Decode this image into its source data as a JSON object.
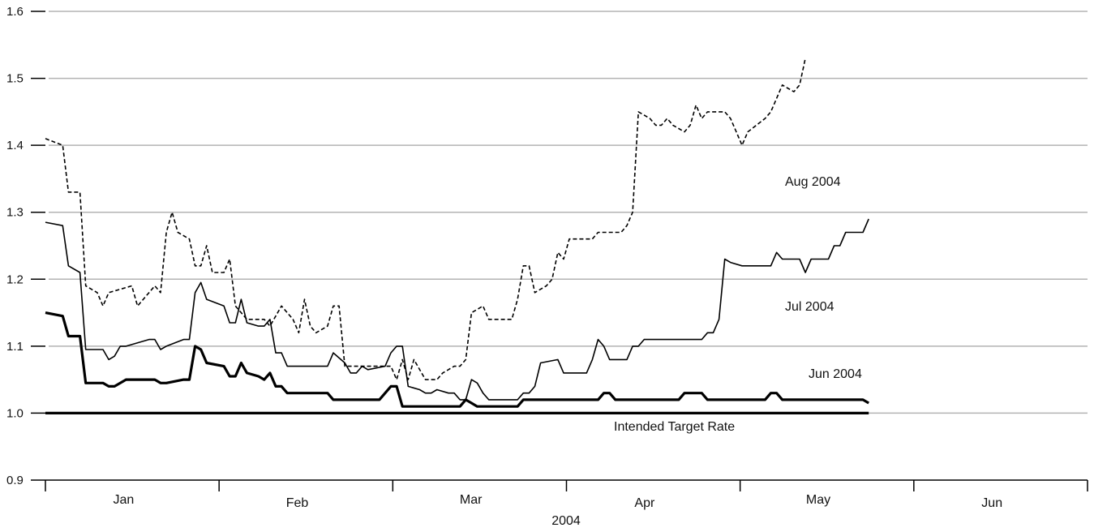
{
  "chart_data": {
    "type": "line",
    "title": "",
    "xlabel": "2004",
    "ylabel": "",
    "ylim": [
      0.9,
      1.6
    ],
    "yticks": [
      "0.9",
      "1.0",
      "1.1",
      "1.2",
      "1.3",
      "1.4",
      "1.5",
      "1.6"
    ],
    "grid": "horizontal",
    "x_months": [
      "Jan",
      "Feb",
      "Mar",
      "Apr",
      "May",
      "Jun"
    ],
    "x_range_days": [
      0,
      181
    ],
    "annotations": [
      "Aug 2004",
      "Jul 2004",
      "Jun 2004",
      "Intended Target Rate"
    ],
    "series": [
      {
        "name": "Aug 2004",
        "style": "dashed",
        "color": "#000000",
        "points": [
          [
            0,
            1.41
          ],
          [
            3,
            1.4
          ],
          [
            4,
            1.33
          ],
          [
            6,
            1.33
          ],
          [
            7,
            1.19
          ],
          [
            9,
            1.18
          ],
          [
            10,
            1.16
          ],
          [
            11,
            1.18
          ],
          [
            13,
            1.185
          ],
          [
            15,
            1.19
          ],
          [
            16,
            1.16
          ],
          [
            18,
            1.18
          ],
          [
            19,
            1.19
          ],
          [
            20,
            1.18
          ],
          [
            21,
            1.27
          ],
          [
            22,
            1.3
          ],
          [
            23,
            1.27
          ],
          [
            25,
            1.26
          ],
          [
            26,
            1.22
          ],
          [
            27,
            1.22
          ],
          [
            28,
            1.25
          ],
          [
            29,
            1.21
          ],
          [
            31,
            1.21
          ],
          [
            32,
            1.23
          ],
          [
            33,
            1.16
          ],
          [
            35,
            1.14
          ],
          [
            38,
            1.14
          ],
          [
            39,
            1.13
          ],
          [
            41,
            1.16
          ],
          [
            43,
            1.14
          ],
          [
            44,
            1.12
          ],
          [
            45,
            1.17
          ],
          [
            46,
            1.13
          ],
          [
            47,
            1.12
          ],
          [
            49,
            1.13
          ],
          [
            50,
            1.16
          ],
          [
            51,
            1.16
          ],
          [
            52,
            1.07
          ],
          [
            58,
            1.07
          ],
          [
            60,
            1.07
          ],
          [
            61,
            1.05
          ],
          [
            62,
            1.08
          ],
          [
            63,
            1.05
          ],
          [
            64,
            1.08
          ],
          [
            66,
            1.05
          ],
          [
            68,
            1.05
          ],
          [
            69,
            1.06
          ],
          [
            71,
            1.07
          ],
          [
            72,
            1.07
          ],
          [
            73,
            1.08
          ],
          [
            74,
            1.15
          ],
          [
            76,
            1.16
          ],
          [
            77,
            1.14
          ],
          [
            81,
            1.14
          ],
          [
            82,
            1.17
          ],
          [
            83,
            1.22
          ],
          [
            84,
            1.22
          ],
          [
            85,
            1.18
          ],
          [
            87,
            1.19
          ],
          [
            88,
            1.2
          ],
          [
            89,
            1.24
          ],
          [
            90,
            1.23
          ],
          [
            91,
            1.26
          ],
          [
            95,
            1.26
          ],
          [
            96,
            1.27
          ],
          [
            98,
            1.27
          ],
          [
            100,
            1.27
          ],
          [
            101,
            1.28
          ],
          [
            102,
            1.3
          ],
          [
            103,
            1.45
          ],
          [
            105,
            1.44
          ],
          [
            106,
            1.43
          ],
          [
            107,
            1.43
          ],
          [
            108,
            1.44
          ],
          [
            109,
            1.43
          ],
          [
            110,
            1.425
          ],
          [
            111,
            1.42
          ],
          [
            112,
            1.43
          ],
          [
            113,
            1.46
          ],
          [
            114,
            1.44
          ],
          [
            115,
            1.45
          ],
          [
            118,
            1.45
          ],
          [
            119,
            1.44
          ],
          [
            121,
            1.4
          ],
          [
            122,
            1.42
          ],
          [
            125,
            1.44
          ],
          [
            126,
            1.45
          ],
          [
            128,
            1.49
          ],
          [
            129,
            1.485
          ],
          [
            130,
            1.48
          ],
          [
            131,
            1.49
          ],
          [
            132,
            1.53
          ]
        ]
      },
      {
        "name": "Jul 2004",
        "style": "solid",
        "color": "#000000",
        "points": [
          [
            0,
            1.285
          ],
          [
            3,
            1.28
          ],
          [
            4,
            1.22
          ],
          [
            6,
            1.21
          ],
          [
            7,
            1.095
          ],
          [
            10,
            1.095
          ],
          [
            11,
            1.08
          ],
          [
            12,
            1.085
          ],
          [
            13,
            1.1
          ],
          [
            14,
            1.1
          ],
          [
            18,
            1.11
          ],
          [
            19,
            1.11
          ],
          [
            20,
            1.095
          ],
          [
            21,
            1.1
          ],
          [
            24,
            1.11
          ],
          [
            25,
            1.11
          ],
          [
            26,
            1.18
          ],
          [
            27,
            1.195
          ],
          [
            28,
            1.17
          ],
          [
            31,
            1.16
          ],
          [
            32,
            1.135
          ],
          [
            33,
            1.135
          ],
          [
            34,
            1.17
          ],
          [
            35,
            1.135
          ],
          [
            37,
            1.13
          ],
          [
            38,
            1.13
          ],
          [
            39,
            1.14
          ],
          [
            40,
            1.09
          ],
          [
            41,
            1.09
          ],
          [
            42,
            1.07
          ],
          [
            49,
            1.07
          ],
          [
            50,
            1.09
          ],
          [
            52,
            1.075
          ],
          [
            53,
            1.06
          ],
          [
            54,
            1.06
          ],
          [
            55,
            1.07
          ],
          [
            56,
            1.065
          ],
          [
            59,
            1.07
          ],
          [
            60,
            1.09
          ],
          [
            61,
            1.1
          ],
          [
            62,
            1.1
          ],
          [
            63,
            1.04
          ],
          [
            65,
            1.035
          ],
          [
            66,
            1.03
          ],
          [
            67,
            1.03
          ],
          [
            68,
            1.035
          ],
          [
            70,
            1.03
          ],
          [
            71,
            1.03
          ],
          [
            72,
            1.02
          ],
          [
            73,
            1.02
          ],
          [
            74,
            1.05
          ],
          [
            75,
            1.045
          ],
          [
            76,
            1.03
          ],
          [
            77,
            1.02
          ],
          [
            82,
            1.02
          ],
          [
            83,
            1.03
          ],
          [
            84,
            1.03
          ],
          [
            85,
            1.04
          ],
          [
            86,
            1.075
          ],
          [
            89,
            1.08
          ],
          [
            90,
            1.06
          ],
          [
            94,
            1.06
          ],
          [
            95,
            1.08
          ],
          [
            96,
            1.11
          ],
          [
            97,
            1.1
          ],
          [
            98,
            1.08
          ],
          [
            101,
            1.08
          ],
          [
            102,
            1.1
          ],
          [
            103,
            1.1
          ],
          [
            104,
            1.11
          ],
          [
            114,
            1.11
          ],
          [
            115,
            1.12
          ],
          [
            116,
            1.12
          ],
          [
            117,
            1.14
          ],
          [
            118,
            1.23
          ],
          [
            119,
            1.225
          ],
          [
            121,
            1.22
          ],
          [
            126,
            1.22
          ],
          [
            127,
            1.24
          ],
          [
            128,
            1.23
          ],
          [
            129,
            1.23
          ],
          [
            130,
            1.23
          ],
          [
            131,
            1.23
          ],
          [
            132,
            1.21
          ],
          [
            133,
            1.23
          ],
          [
            135,
            1.23
          ],
          [
            136,
            1.23
          ],
          [
            137,
            1.25
          ],
          [
            138,
            1.25
          ],
          [
            139,
            1.27
          ],
          [
            141,
            1.27
          ],
          [
            142,
            1.27
          ],
          [
            143,
            1.29
          ]
        ]
      },
      {
        "name": "Jun 2004",
        "style": "thick",
        "color": "#000000",
        "points": [
          [
            0,
            1.15
          ],
          [
            3,
            1.145
          ],
          [
            4,
            1.115
          ],
          [
            6,
            1.115
          ],
          [
            7,
            1.045
          ],
          [
            10,
            1.045
          ],
          [
            11,
            1.04
          ],
          [
            12,
            1.04
          ],
          [
            13,
            1.045
          ],
          [
            14,
            1.05
          ],
          [
            19,
            1.05
          ],
          [
            20,
            1.045
          ],
          [
            21,
            1.045
          ],
          [
            24,
            1.05
          ],
          [
            25,
            1.05
          ],
          [
            26,
            1.1
          ],
          [
            27,
            1.095
          ],
          [
            28,
            1.075
          ],
          [
            31,
            1.07
          ],
          [
            32,
            1.055
          ],
          [
            33,
            1.055
          ],
          [
            34,
            1.075
          ],
          [
            35,
            1.06
          ],
          [
            37,
            1.055
          ],
          [
            38,
            1.05
          ],
          [
            39,
            1.06
          ],
          [
            40,
            1.04
          ],
          [
            41,
            1.04
          ],
          [
            42,
            1.03
          ],
          [
            49,
            1.03
          ],
          [
            50,
            1.02
          ],
          [
            54,
            1.02
          ],
          [
            55,
            1.02
          ],
          [
            58,
            1.02
          ],
          [
            59,
            1.03
          ],
          [
            60,
            1.04
          ],
          [
            61,
            1.04
          ],
          [
            62,
            1.01
          ],
          [
            70,
            1.01
          ],
          [
            72,
            1.01
          ],
          [
            73,
            1.02
          ],
          [
            74,
            1.015
          ],
          [
            75,
            1.01
          ],
          [
            82,
            1.01
          ],
          [
            83,
            1.02
          ],
          [
            96,
            1.02
          ],
          [
            97,
            1.03
          ],
          [
            98,
            1.03
          ],
          [
            99,
            1.02
          ],
          [
            110,
            1.02
          ],
          [
            111,
            1.03
          ],
          [
            114,
            1.03
          ],
          [
            115,
            1.02
          ],
          [
            118,
            1.02
          ],
          [
            125,
            1.02
          ],
          [
            126,
            1.03
          ],
          [
            127,
            1.03
          ],
          [
            128,
            1.02
          ],
          [
            130,
            1.02
          ],
          [
            142,
            1.02
          ],
          [
            143,
            1.015
          ]
        ]
      },
      {
        "name": "Intended Target Rate",
        "style": "thick",
        "color": "#000000",
        "points": [
          [
            0,
            1.0
          ],
          [
            143,
            1.0
          ]
        ]
      }
    ]
  }
}
